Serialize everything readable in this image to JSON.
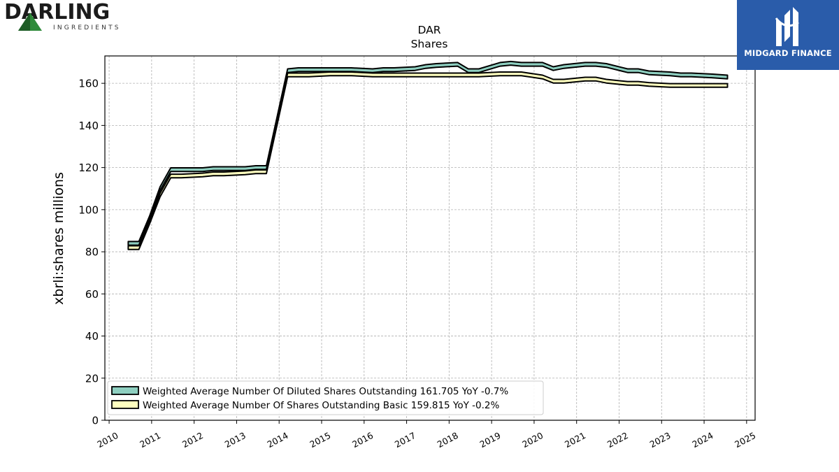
{
  "branding": {
    "company_name": "DARLING",
    "company_sub": "INGREDIENTS",
    "publisher": "MIDGARD FINANCE",
    "company_logo_color": "#2e8b3a",
    "publisher_bg_color": "#2a5caa"
  },
  "chart_data": {
    "type": "area",
    "title": "DAR",
    "subtitle": "Shares",
    "xlabel": "",
    "ylabel": "xbrli:shares millions",
    "xlim": [
      2009.9,
      2025.2
    ],
    "ylim": [
      0,
      173
    ],
    "x_ticks": [
      2010,
      2011,
      2012,
      2013,
      2014,
      2015,
      2016,
      2017,
      2018,
      2019,
      2020,
      2021,
      2022,
      2023,
      2024,
      2025
    ],
    "x_tick_labels": [
      "2010",
      "2011",
      "2012",
      "2013",
      "2014",
      "2015",
      "2016",
      "2017",
      "2018",
      "2019",
      "2020",
      "2021",
      "2022",
      "2023",
      "2024",
      "2025"
    ],
    "y_ticks": [
      0,
      20,
      40,
      60,
      80,
      100,
      120,
      140,
      160
    ],
    "y_tick_labels": [
      "0",
      "20",
      "40",
      "60",
      "80",
      "100",
      "120",
      "140",
      "160"
    ],
    "grid": true,
    "legend_position": "lower-left",
    "series": [
      {
        "name": "Weighted Average Number Of Diluted Shares Outstanding",
        "legend_label": "Weighted Average Number Of Diluted Shares Outstanding  161.705 YoY -0.7%",
        "color": "#8ecfc0",
        "x": [
          2010.45,
          2010.7,
          2010.95,
          2011.2,
          2011.45,
          2011.7,
          2012.2,
          2012.45,
          2012.7,
          2013.2,
          2013.45,
          2013.7,
          2013.95,
          2014.2,
          2014.45,
          2014.7,
          2015.2,
          2015.45,
          2015.7,
          2016.2,
          2016.45,
          2016.7,
          2017.2,
          2017.45,
          2017.7,
          2018.2,
          2018.45,
          2018.7,
          2019.2,
          2019.45,
          2019.7,
          2020.2,
          2020.45,
          2020.7,
          2021.2,
          2021.45,
          2021.7,
          2022.2,
          2022.45,
          2022.7,
          2023.2,
          2023.45,
          2023.7,
          2024.2,
          2024.55
        ],
        "values": [
          84,
          84,
          96,
          110,
          119,
          119,
          119,
          119.5,
          119.5,
          119.5,
          120,
          120,
          143,
          166,
          166.5,
          166.5,
          166.5,
          166.5,
          166.5,
          166,
          166.5,
          166.5,
          167,
          168,
          168.5,
          169,
          166,
          166,
          169,
          169.5,
          169,
          169,
          167,
          168,
          169,
          169,
          168.5,
          166,
          166,
          165,
          164.5,
          164,
          164,
          163.5,
          163
        ]
      },
      {
        "name": "Weighted Average Number Of Shares Outstanding Basic",
        "legend_label": "Weighted Average Number Of Shares Outstanding Basic  159.815 YoY -0.2%",
        "color": "#ffffbf",
        "x": [
          2010.45,
          2010.7,
          2010.95,
          2011.2,
          2011.45,
          2011.7,
          2012.2,
          2012.45,
          2012.7,
          2013.2,
          2013.45,
          2013.7,
          2013.95,
          2014.2,
          2014.45,
          2014.7,
          2015.2,
          2015.45,
          2015.7,
          2016.2,
          2016.45,
          2016.7,
          2017.2,
          2017.45,
          2017.7,
          2018.2,
          2018.45,
          2018.7,
          2019.2,
          2019.45,
          2019.7,
          2020.2,
          2020.45,
          2020.7,
          2021.2,
          2021.45,
          2021.7,
          2022.2,
          2022.45,
          2022.7,
          2023.2,
          2023.45,
          2023.7,
          2024.2,
          2024.55
        ],
        "values": [
          82,
          82,
          94,
          107,
          116,
          116,
          116.5,
          117,
          117,
          117.5,
          118,
          118,
          141,
          164,
          164,
          164,
          164.5,
          164.5,
          164.5,
          164,
          164,
          164,
          164,
          164,
          164,
          164,
          164,
          164,
          164.5,
          164.5,
          164.5,
          163,
          161,
          161,
          162,
          162,
          161,
          160,
          160,
          159.5,
          159,
          159,
          159,
          159,
          159
        ]
      }
    ]
  }
}
